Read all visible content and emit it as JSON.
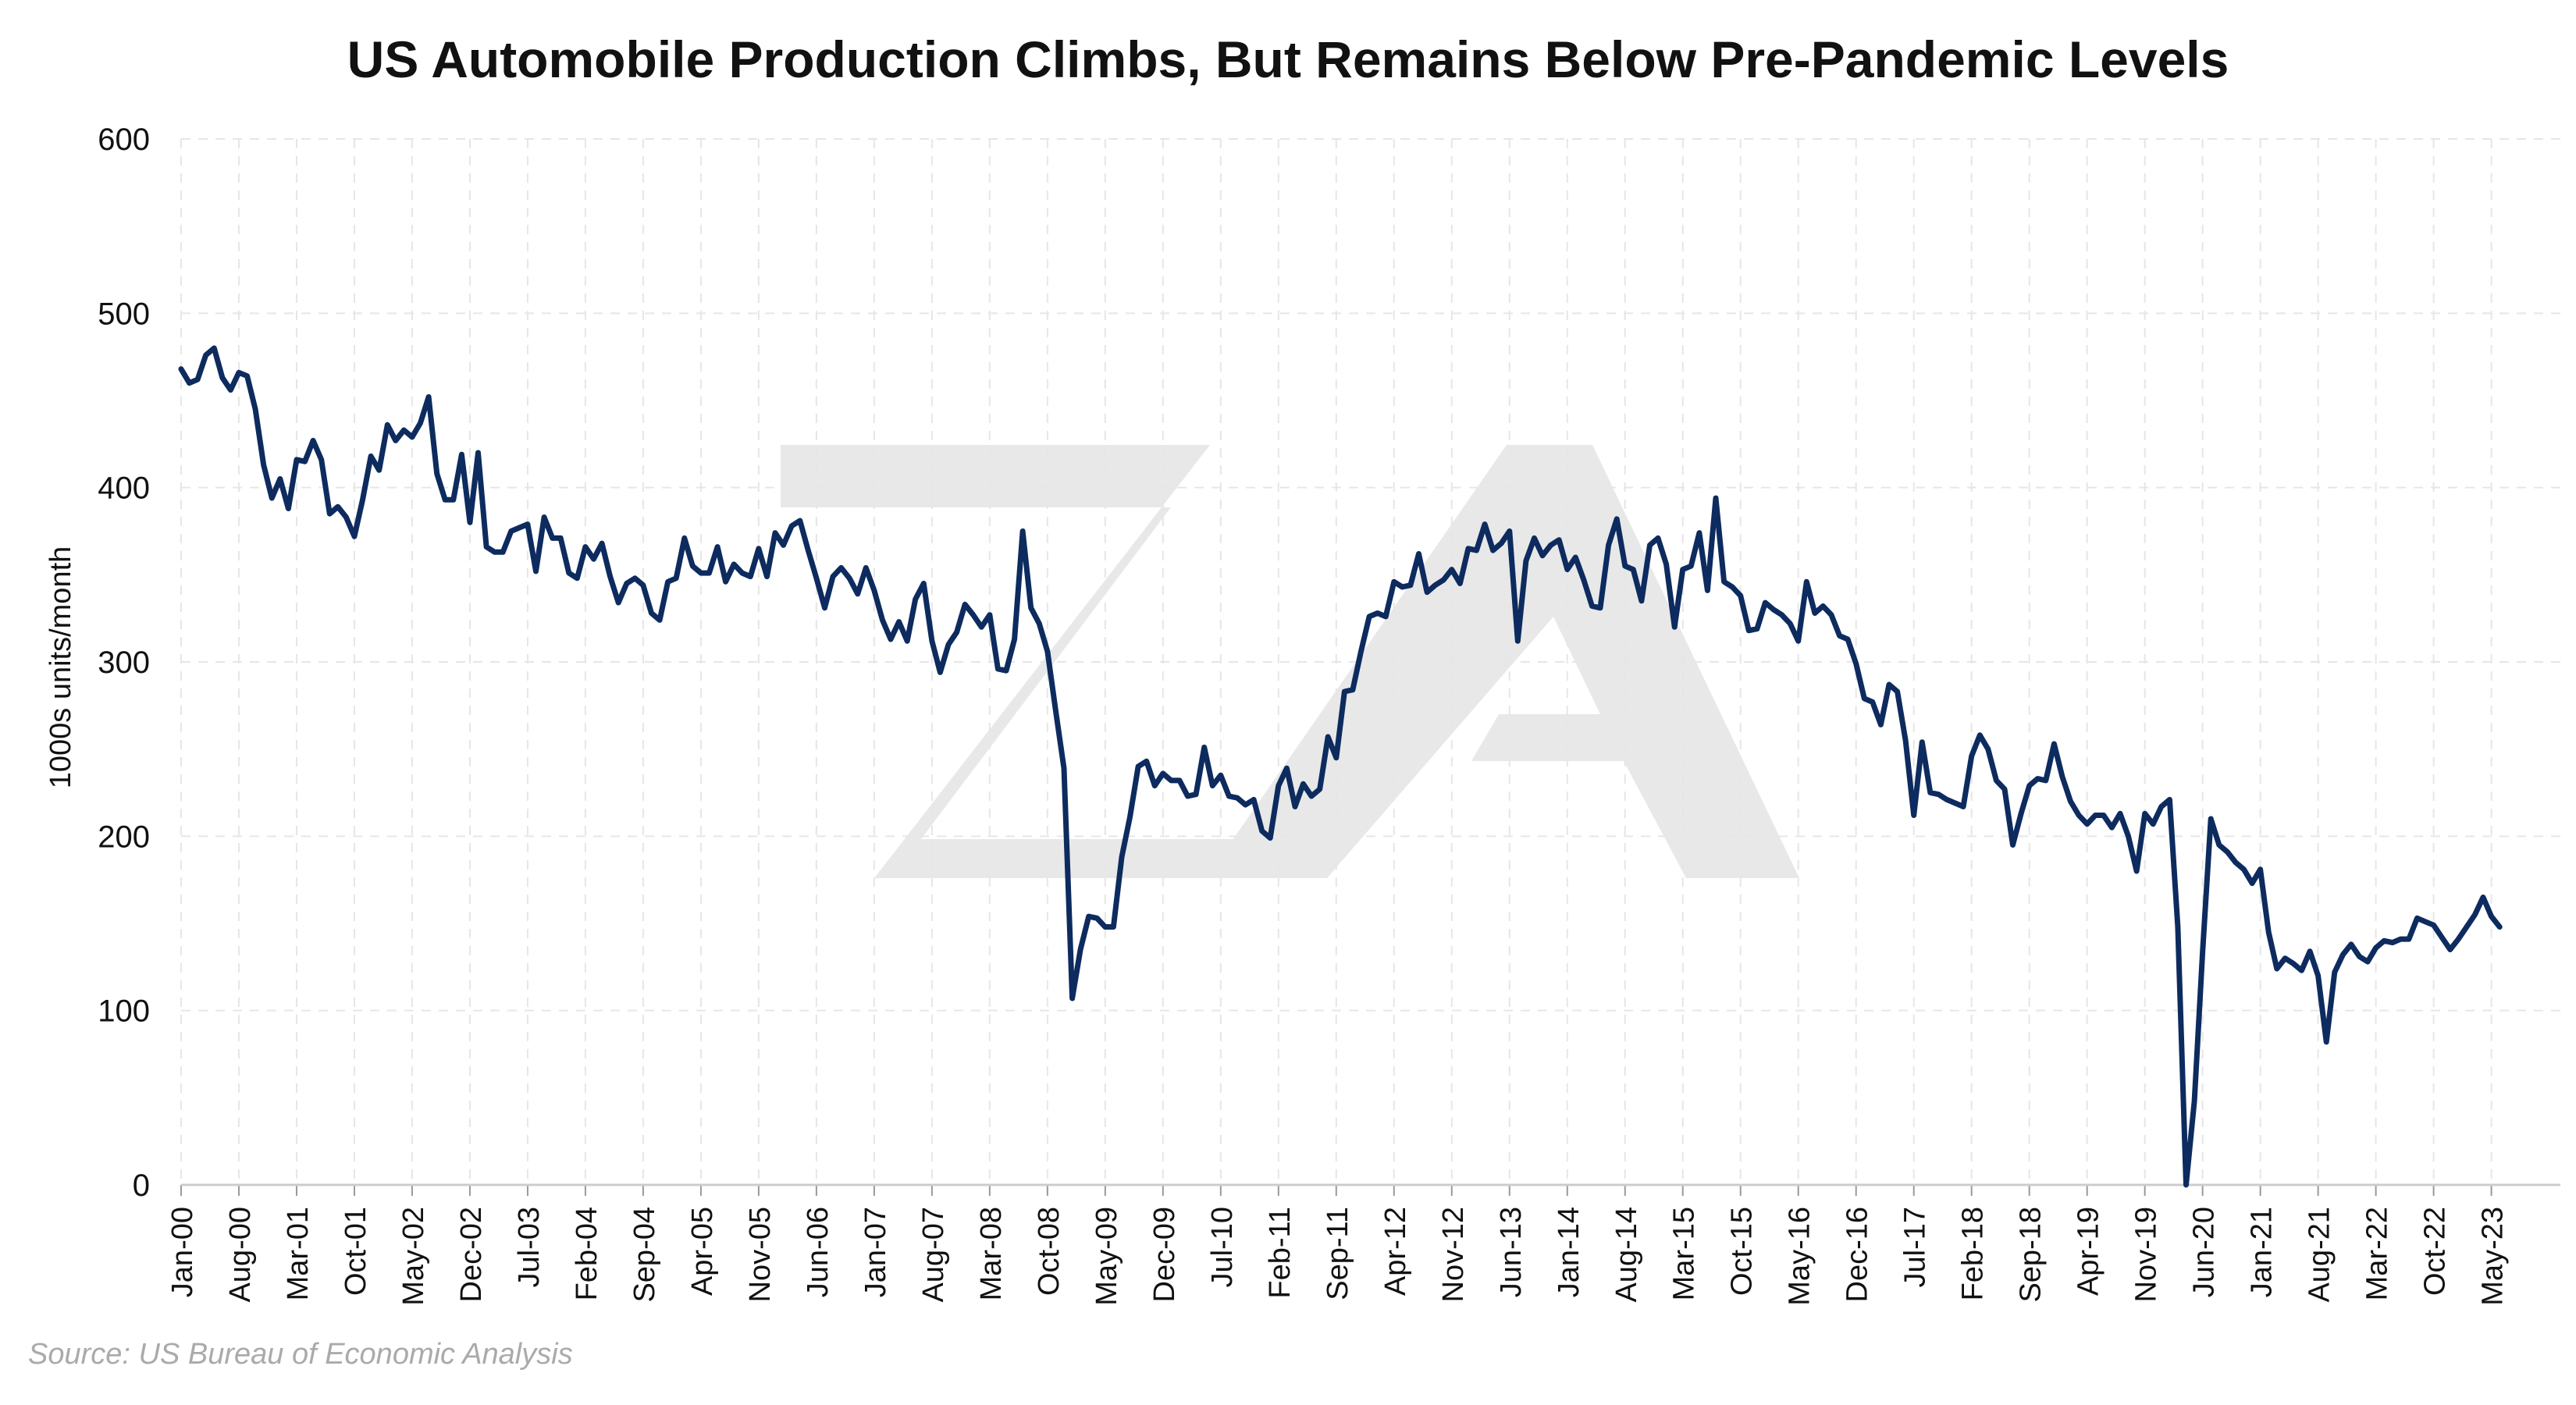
{
  "chart_data": {
    "type": "line",
    "title": "US Automobile Production Climbs, But Remains Below Pre-Pandemic Levels",
    "xlabel": "",
    "ylabel": "1000s units/month",
    "ylim": [
      0,
      600
    ],
    "yticks": [
      0,
      100,
      200,
      300,
      400,
      500,
      600
    ],
    "xticks": [
      "Jan-00",
      "Aug-00",
      "Mar-01",
      "Oct-01",
      "May-02",
      "Dec-02",
      "Jul-03",
      "Feb-04",
      "Sep-04",
      "Apr-05",
      "Nov-05",
      "Jun-06",
      "Jan-07",
      "Aug-07",
      "Mar-08",
      "Oct-08",
      "May-09",
      "Dec-09",
      "Jul-10",
      "Feb-11",
      "Sep-11",
      "Apr-12",
      "Nov-12",
      "Jun-13",
      "Jan-14",
      "Aug-14",
      "Mar-15",
      "Oct-15",
      "May-16",
      "Dec-16",
      "Jul-17",
      "Feb-18",
      "Sep-18",
      "Apr-19",
      "Nov-19",
      "Jun-20",
      "Jan-21",
      "Aug-21",
      "Mar-22",
      "Oct-22",
      "May-23"
    ],
    "grid": true,
    "line_color": "#0d2b5e",
    "series": [
      {
        "x_start": "Jan-00",
        "frequency": "monthly",
        "values": [
          468,
          460,
          462,
          476,
          480,
          463,
          456,
          466,
          464,
          445,
          413,
          394,
          405,
          388,
          416,
          415,
          427,
          416,
          385,
          389,
          383,
          372,
          393,
          418,
          410,
          436,
          427,
          433,
          429,
          437,
          452,
          408,
          393,
          393,
          419,
          380,
          420,
          366,
          363,
          363,
          375,
          377,
          379,
          352,
          383,
          371,
          371,
          351,
          348,
          366,
          359,
          368,
          349,
          334,
          345,
          348,
          344,
          328,
          324,
          346,
          348,
          371,
          355,
          351,
          351,
          366,
          346,
          356,
          351,
          349,
          365,
          349,
          374,
          367,
          378,
          381,
          364,
          348,
          331,
          349,
          354,
          348,
          339,
          354,
          341,
          324,
          313,
          323,
          312,
          336,
          345,
          312,
          294,
          310,
          317,
          333,
          327,
          320,
          327,
          296,
          295,
          313,
          375,
          331,
          322,
          306,
          272,
          239,
          107,
          135,
          154,
          153,
          148,
          148,
          188,
          211,
          240,
          243,
          229,
          236,
          232,
          232,
          223,
          224,
          251,
          229,
          235,
          223,
          222,
          218,
          221,
          203,
          199,
          229,
          239,
          217,
          230,
          223,
          227,
          257,
          245,
          283,
          284,
          306,
          326,
          328,
          326,
          346,
          343,
          344,
          362,
          340,
          344,
          347,
          353,
          345,
          365,
          364,
          379,
          364,
          368,
          375,
          312,
          358,
          371,
          361,
          367,
          370,
          353,
          360,
          347,
          332,
          331,
          367,
          382,
          355,
          353,
          335,
          367,
          371,
          356,
          320,
          353,
          355,
          374,
          341,
          394,
          346,
          343,
          338,
          318,
          319,
          334,
          330,
          327,
          322,
          312,
          346,
          328,
          332,
          327,
          315,
          313,
          299,
          279,
          277,
          264,
          287,
          283,
          255,
          212,
          254,
          225,
          224,
          221,
          219,
          217,
          246,
          258,
          250,
          232,
          227,
          195,
          213,
          229,
          233,
          232,
          253,
          234,
          220,
          212,
          207,
          212,
          212,
          205,
          213,
          200,
          180,
          213,
          207,
          217,
          221,
          148,
          0,
          48,
          134,
          210,
          195,
          191,
          185,
          181,
          173,
          181,
          145,
          124,
          130,
          127,
          123,
          134,
          120,
          82,
          122,
          132,
          138,
          131,
          128,
          136,
          140,
          139,
          141,
          141,
          153,
          151,
          149,
          142,
          135,
          141,
          148,
          155,
          165,
          154,
          148
        ]
      }
    ]
  },
  "source_note": "Source: US Bureau of Economic Analysis"
}
